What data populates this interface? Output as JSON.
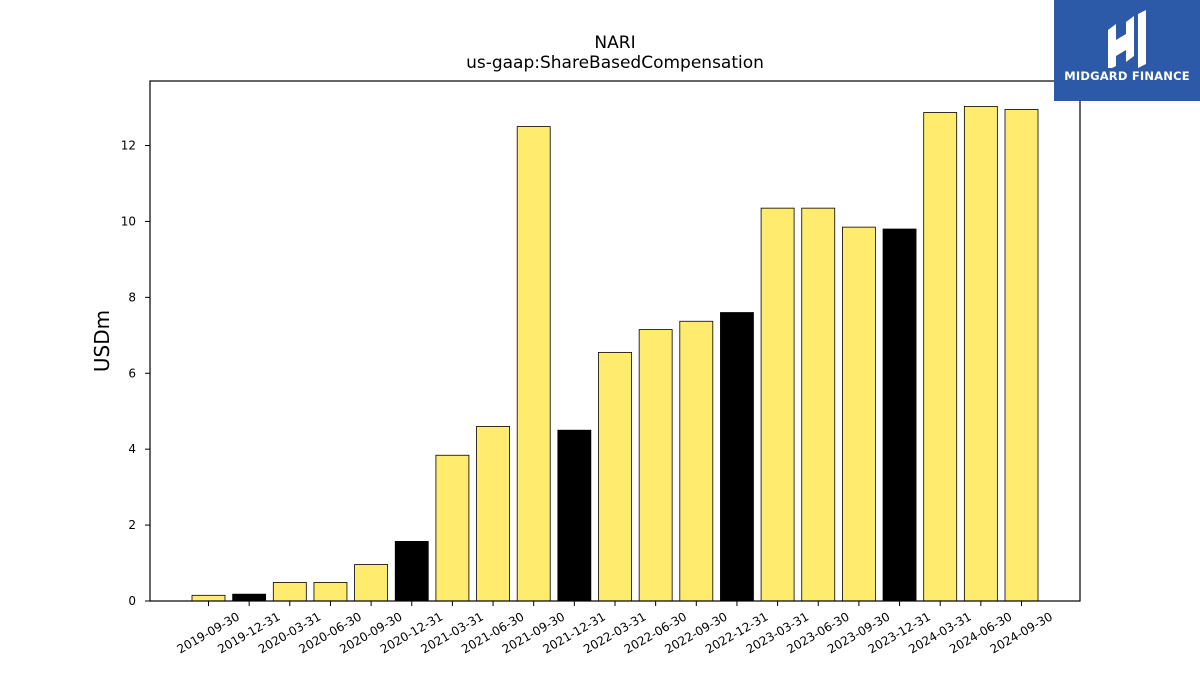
{
  "chart_data": {
    "type": "bar",
    "title": "NARI",
    "subtitle": "us-gaap:ShareBasedCompensation",
    "xlabel": "",
    "ylabel": "USDm",
    "ylim": [
      0,
      13.7
    ],
    "yticks": [
      0,
      2,
      4,
      6,
      8,
      10,
      12
    ],
    "grid": false,
    "categories": [
      "2019-09-30",
      "2019-12-31",
      "2020-03-31",
      "2020-06-30",
      "2020-09-30",
      "2020-12-31",
      "2021-03-31",
      "2021-06-30",
      "2021-09-30",
      "2021-12-31",
      "2022-03-31",
      "2022-06-30",
      "2022-09-30",
      "2022-12-31",
      "2023-03-31",
      "2023-06-30",
      "2023-09-30",
      "2023-12-31",
      "2024-03-31",
      "2024-06-30",
      "2024-09-30"
    ],
    "values": [
      0.15,
      0.18,
      0.49,
      0.49,
      0.96,
      1.57,
      3.84,
      4.6,
      12.5,
      4.5,
      6.55,
      7.15,
      7.37,
      7.6,
      10.35,
      10.35,
      9.85,
      9.8,
      12.87,
      13.03,
      12.95
    ],
    "bar_colors": [
      "#ffec6e",
      "#000000",
      "#ffec6e",
      "#ffec6e",
      "#ffec6e",
      "#000000",
      "#ffec6e",
      "#ffec6e",
      "#ffec6e",
      "#000000",
      "#ffec6e",
      "#ffec6e",
      "#ffec6e",
      "#000000",
      "#ffec6e",
      "#ffec6e",
      "#ffec6e",
      "#000000",
      "#ffec6e",
      "#ffec6e",
      "#ffec6e"
    ],
    "edge_color": "#000000"
  },
  "logo": {
    "text": "MIDGARD FINANCE",
    "background": "#2c5aa8",
    "icon": "midgard-logo-icon"
  }
}
